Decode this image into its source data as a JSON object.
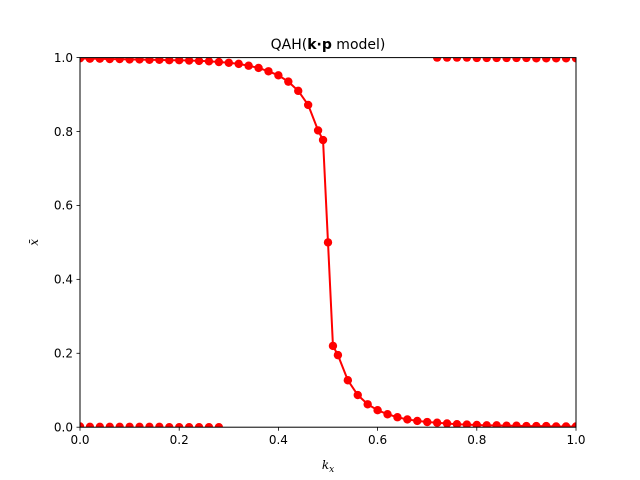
{
  "chart_data": {
    "type": "line",
    "title_prefix": "QAH(",
    "title_bold": "k·p",
    "title_suffix": " model)",
    "xlabel_base": "k",
    "xlabel_sub": "x",
    "ylabel": "x̄",
    "xlim": [
      0,
      1
    ],
    "ylim": [
      0,
      1
    ],
    "xticks": [
      "0.0",
      "0.2",
      "0.4",
      "0.6",
      "0.8",
      "1.0"
    ],
    "yticks": [
      "0.0",
      "0.2",
      "0.4",
      "0.6",
      "0.8",
      "1.0"
    ],
    "grid": false,
    "color": "#ff0000",
    "series": [
      {
        "line": true,
        "x": [
          0.0,
          0.02,
          0.04,
          0.06,
          0.08,
          0.1,
          0.12,
          0.14,
          0.16,
          0.18,
          0.2,
          0.22,
          0.24,
          0.26,
          0.28,
          0.3,
          0.32,
          0.34,
          0.36,
          0.38,
          0.4,
          0.42,
          0.44,
          0.46,
          0.48,
          0.49,
          0.5,
          0.51,
          0.52,
          0.54,
          0.56,
          0.58,
          0.6,
          0.62,
          0.64,
          0.66,
          0.68,
          0.7,
          0.72,
          0.74,
          0.76,
          0.78,
          0.8,
          0.82,
          0.84,
          0.86,
          0.88,
          0.9,
          0.92,
          0.94,
          0.96,
          0.98,
          1.0
        ],
        "y": [
          0.998,
          0.997,
          0.997,
          0.996,
          0.996,
          0.995,
          0.995,
          0.994,
          0.994,
          0.993,
          0.993,
          0.992,
          0.991,
          0.99,
          0.988,
          0.986,
          0.983,
          0.978,
          0.972,
          0.963,
          0.952,
          0.935,
          0.91,
          0.872,
          0.803,
          0.777,
          0.5,
          0.22,
          0.195,
          0.127,
          0.087,
          0.062,
          0.046,
          0.035,
          0.027,
          0.021,
          0.017,
          0.014,
          0.012,
          0.01,
          0.008,
          0.007,
          0.006,
          0.005,
          0.005,
          0.004,
          0.004,
          0.003,
          0.003,
          0.003,
          0.002,
          0.002,
          0.002
        ]
      },
      {
        "line": false,
        "x": [
          0.0,
          0.02,
          0.04,
          0.06,
          0.08,
          0.1,
          0.12,
          0.14,
          0.16,
          0.18,
          0.2,
          0.22,
          0.24,
          0.26,
          0.28
        ],
        "y": [
          0.002,
          0.001,
          0.001,
          0.001,
          0.001,
          0.001,
          0.001,
          0.001,
          0.001,
          0.0,
          0.0,
          0.0,
          0.0,
          0.0,
          0.0
        ]
      },
      {
        "line": false,
        "x": [
          0.72,
          0.74,
          0.76,
          0.78,
          0.8,
          0.82,
          0.84,
          0.86,
          0.88,
          0.9,
          0.92,
          0.94,
          0.96,
          0.98,
          1.0
        ],
        "y": [
          1.0,
          1.0,
          1.0,
          1.0,
          0.999,
          0.999,
          0.999,
          0.999,
          0.999,
          0.999,
          0.998,
          0.998,
          0.998,
          0.998,
          0.998
        ]
      }
    ]
  }
}
